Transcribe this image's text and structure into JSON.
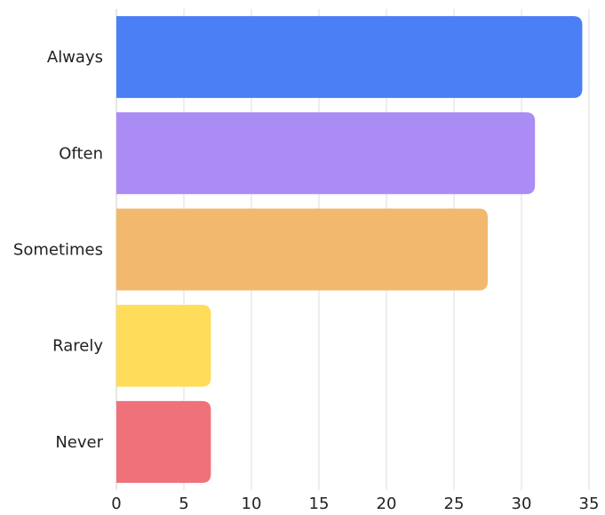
{
  "chart_data": {
    "type": "bar",
    "orientation": "horizontal",
    "categories": [
      "Always",
      "Often",
      "Sometimes",
      "Rarely",
      "Never"
    ],
    "values": [
      34.5,
      31,
      27.5,
      7,
      7
    ],
    "colors": [
      "#4a7ff5",
      "#ab8cf5",
      "#f1b86e",
      "#ffdc5a",
      "#ef727b"
    ],
    "xlim": [
      0,
      35
    ],
    "xticks": [
      "0",
      "5",
      "10",
      "15",
      "20",
      "25",
      "30",
      "35"
    ],
    "title": "",
    "xlabel": "",
    "ylabel": "",
    "grid": "vertical",
    "legend": "none"
  }
}
